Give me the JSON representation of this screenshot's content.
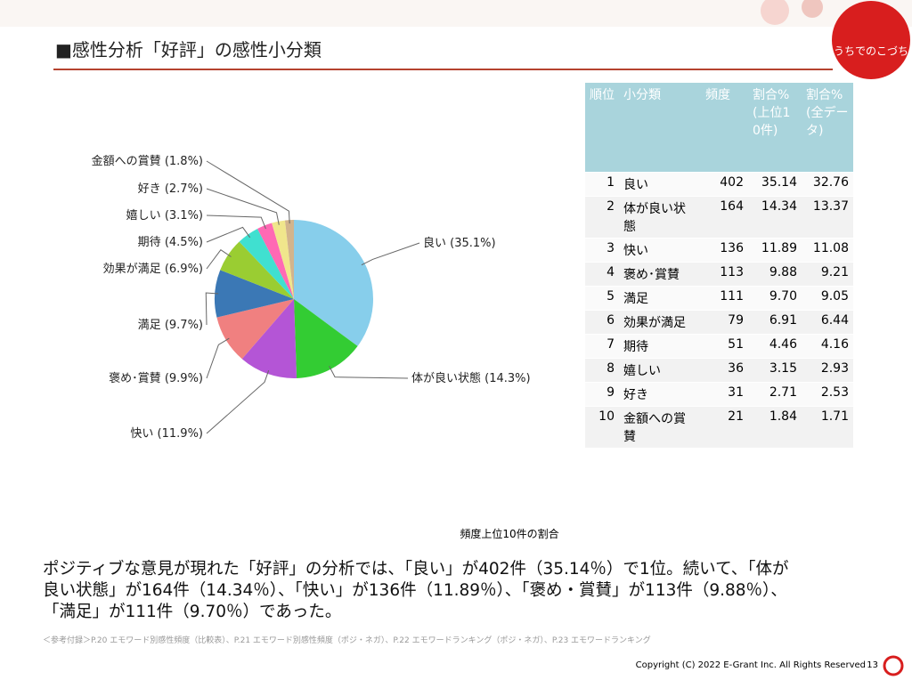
{
  "header": {
    "title": "■感性分析「好評」の感性小分類",
    "logo": "うちでのこづち"
  },
  "chart_data": {
    "type": "pie",
    "start": "top",
    "direction": "clockwise",
    "categories": [
      "良い",
      "体が良い状態",
      "快い",
      "褒め･賞賛",
      "満足",
      "効果が満足",
      "期待",
      "嬉しい",
      "好き",
      "金額への賞賛"
    ],
    "values": [
      35.1,
      14.3,
      11.9,
      9.9,
      9.7,
      6.9,
      4.5,
      3.1,
      2.7,
      1.8
    ],
    "value_labels": [
      "(35.1%)",
      "(14.3%)",
      "(11.9%)",
      "(9.9%)",
      "(9.7%)",
      "(6.9%)",
      "(4.5%)",
      "(3.1%)",
      "(2.7%)",
      "(1.8%)"
    ],
    "colors": [
      "#87CEEB",
      "#33CC33",
      "#B455D6",
      "#F08080",
      "#3B78B5",
      "#9ACD32",
      "#40E0D0",
      "#FF69B4",
      "#F0E68C",
      "#D2B48C"
    ]
  },
  "table": {
    "header": [
      "順位",
      "小分類",
      "頻度",
      "割合%(上位10件)",
      "割合%(全データ)"
    ],
    "rows": [
      [
        "1",
        "良い",
        "402",
        "35.14",
        "32.76"
      ],
      [
        "2",
        "体が良い状態",
        "164",
        "14.34",
        "13.37"
      ],
      [
        "3",
        "快い",
        "136",
        "11.89",
        "11.08"
      ],
      [
        "4",
        "褒め･賞賛",
        "113",
        "9.88",
        "9.21"
      ],
      [
        "5",
        "満足",
        "111",
        "9.70",
        "9.05"
      ],
      [
        "6",
        "効果が満足",
        "79",
        "6.91",
        "6.44"
      ],
      [
        "7",
        "期待",
        "51",
        "4.46",
        "4.16"
      ],
      [
        "8",
        "嬉しい",
        "36",
        "3.15",
        "2.93"
      ],
      [
        "9",
        "好き",
        "31",
        "2.71",
        "2.53"
      ],
      [
        "10",
        "金額への賞賛",
        "21",
        "1.84",
        "1.71"
      ]
    ]
  },
  "caption": "頻度上位10件の割合",
  "body": "ポジティブな意見が現れた「好評」の分析では、「良い」が402件（35.14％）で1位。続いて、「体が良い状態」が164件（14.34％）、「快い」が136件（11.89％）、「褒め・賞賛」が113件（9.88％）、「満足」が111件（9.70％）であった。",
  "footnote": "＜参考付録＞P.20 エモワード別感性頻度（比較表）、P.21 エモワード別感性頻度（ポジ・ネガ）、P.22 エモワードランキング（ポジ・ネガ）、P.23 エモワードランキング",
  "copyright": "Copyright (C) 2022 E-Grant Inc. All Rights Reserved",
  "page": "13"
}
